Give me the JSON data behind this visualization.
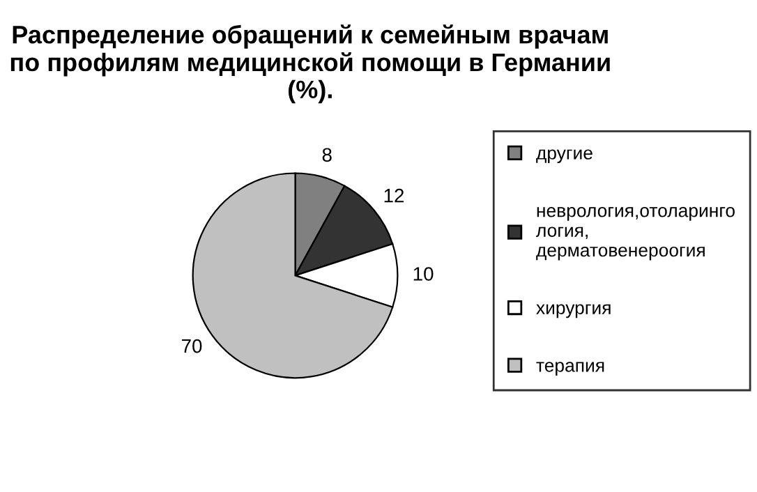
{
  "chart_data": {
    "type": "pie",
    "title": "Распределение обращений к семейным врачам по профилям медицинской помощи в Германии (%).",
    "categories": [
      "другие",
      "неврология,отоларингология, дерматовенероогия",
      "хирургия",
      "терапия"
    ],
    "values": [
      8,
      12,
      10,
      70
    ],
    "colors": [
      "#808080",
      "#333333",
      "#ffffff",
      "#c0c0c0"
    ],
    "data_labels": true,
    "legend": "right"
  }
}
